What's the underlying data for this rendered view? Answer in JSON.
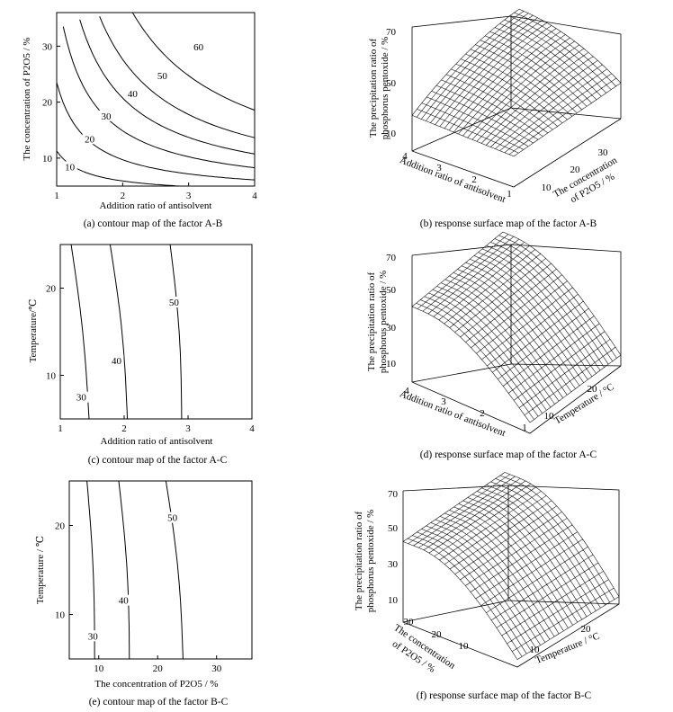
{
  "chart_data": [
    {
      "panel": "a",
      "type": "contour",
      "caption": "(a) contour map of the factor A-B",
      "xlabel": "Addition ratio of antisolvent",
      "ylabel": "The concentration of P2O5 / %",
      "xlim": [
        1,
        4
      ],
      "ylim": [
        5,
        36
      ],
      "xticks": [
        "1",
        "2",
        "3",
        "4"
      ],
      "yticks": [
        "10",
        "20",
        "30"
      ],
      "contour_levels": [
        "10",
        "20",
        "30",
        "40",
        "50",
        "60"
      ]
    },
    {
      "panel": "b",
      "type": "surface",
      "caption": "(b) response surface map of the factor A-B",
      "zlabel_line1": "The precipitation ratio of",
      "zlabel_line2": "phosphorus pentoxide / %",
      "xlabel": "Addition ratio of antisolvent",
      "ylabel_line1": "The concentration",
      "ylabel_line2": "of P2O5 / %",
      "xticks": [
        "1",
        "2",
        "3",
        "4"
      ],
      "yticks": [
        "10",
        "20",
        "30"
      ],
      "zticks": [
        "10",
        "30",
        "50",
        "70"
      ]
    },
    {
      "panel": "c",
      "type": "contour",
      "caption": "(c) contour map of the factor A-C",
      "xlabel": "Addition ratio of antisolvent",
      "ylabel": "Temperature/℃",
      "xlim": [
        1,
        4
      ],
      "ylim": [
        5,
        25
      ],
      "xticks": [
        "1",
        "2",
        "3",
        "4"
      ],
      "yticks": [
        "10",
        "20"
      ],
      "contour_levels": [
        "30",
        "40",
        "50"
      ]
    },
    {
      "panel": "d",
      "type": "surface",
      "caption": "(d) response surface map of the factor A-C",
      "zlabel_line1": "The precipitation ratio of",
      "zlabel_line2": "phosphorus pentoxide / %",
      "xlabel": "Addition ratio of antisolvent",
      "ylabel": "Temperature / °C",
      "xticks": [
        "1",
        "2",
        "3",
        "4"
      ],
      "yticks": [
        "10",
        "20"
      ],
      "zticks": [
        "10",
        "30",
        "50",
        "70"
      ]
    },
    {
      "panel": "e",
      "type": "contour",
      "caption": "(e) contour map of the factor B-C",
      "xlabel": "The concentration of P2O5 / %",
      "ylabel": "Temperature / ℃",
      "xlim": [
        5,
        36
      ],
      "ylim": [
        5,
        25
      ],
      "xticks": [
        "10",
        "20",
        "30"
      ],
      "yticks": [
        "10",
        "20"
      ],
      "contour_levels": [
        "30",
        "40",
        "50"
      ]
    },
    {
      "panel": "f",
      "type": "surface",
      "caption": "(f) response surface map of the factor B-C",
      "zlabel_line1": "The precipitation ratio of",
      "zlabel_line2": "phosphorus pentoxide / %",
      "xlabel_line1": "The concentration",
      "xlabel_line2": "of P2O5 / %",
      "ylabel": "Temperature / °C",
      "xticks": [
        "10",
        "20",
        "30"
      ],
      "yticks": [
        "10",
        "20"
      ],
      "zticks": [
        "10",
        "30",
        "50",
        "70"
      ]
    }
  ]
}
